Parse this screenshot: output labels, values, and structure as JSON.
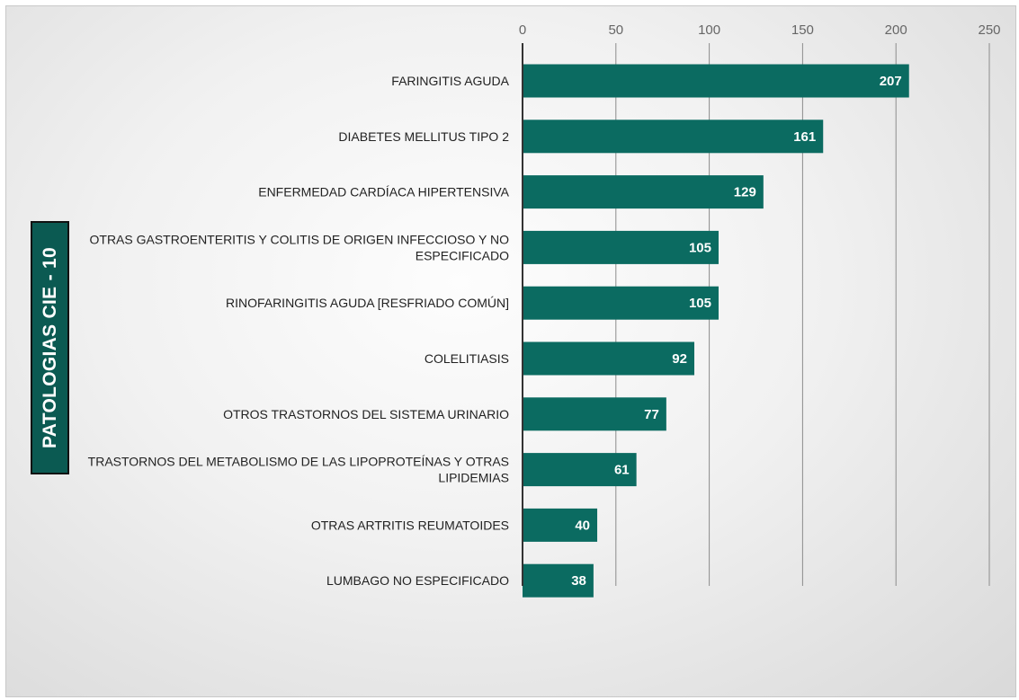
{
  "chart_data": {
    "type": "bar",
    "orientation": "horizontal",
    "ylabel": "PATOLOGIAS  CIE - 10",
    "xlabel": "",
    "title": "",
    "xlim": [
      0,
      250
    ],
    "x_ticks": [
      0,
      50,
      100,
      150,
      200,
      250
    ],
    "x_axis_position": "top",
    "grid": true,
    "bar_color": "#0b6b61",
    "categories": [
      [
        "FARINGITIS AGUDA"
      ],
      [
        "DIABETES MELLITUS TIPO 2"
      ],
      [
        "ENFERMEDAD CARDÍACA HIPERTENSIVA"
      ],
      [
        "OTRAS GASTROENTERITIS Y COLITIS DE ORIGEN INFECCIOSO Y NO",
        "ESPECIFICADO"
      ],
      [
        "RINOFARINGITIS AGUDA [RESFRIADO COMÚN]"
      ],
      [
        "COLELITIASIS"
      ],
      [
        "OTROS TRASTORNOS DEL SISTEMA URINARIO"
      ],
      [
        "TRASTORNOS DEL METABOLISMO DE LAS LIPOPROTEÍNAS Y OTRAS",
        "LIPIDEMIAS"
      ],
      [
        "OTRAS ARTRITIS REUMATOIDES"
      ],
      [
        "LUMBAGO NO ESPECIFICADO"
      ]
    ],
    "values": [
      207,
      161,
      129,
      105,
      105,
      92,
      77,
      61,
      40,
      38
    ]
  }
}
